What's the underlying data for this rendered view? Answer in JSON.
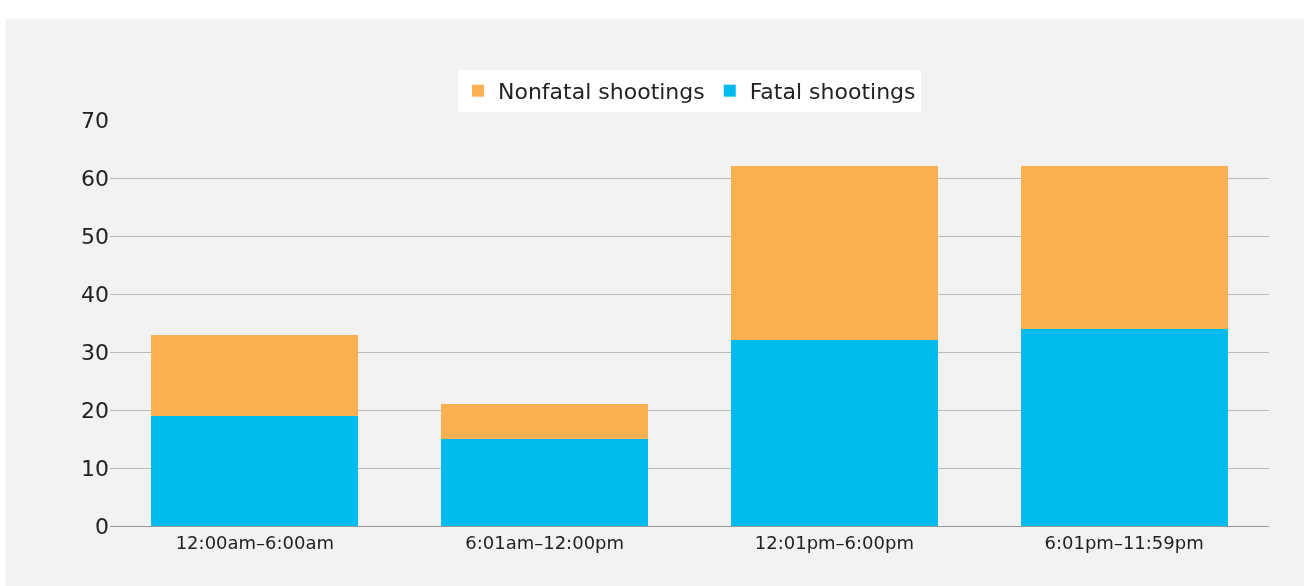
{
  "chart_data": {
    "type": "bar",
    "stacked": true,
    "categories": [
      "12:00am–6:00am",
      "6:01am–12:00pm",
      "12:01pm–6:00pm",
      "6:01pm–11:59pm"
    ],
    "series": [
      {
        "name": "Fatal shootings",
        "color": "#00bbee",
        "values": [
          19,
          15,
          32,
          34
        ]
      },
      {
        "name": "Nonfatal shootings",
        "color": "#f8b050",
        "values": [
          14,
          6,
          30,
          28
        ]
      }
    ],
    "ylim": [
      0,
      70
    ],
    "yticks": [
      0,
      10,
      20,
      30,
      40,
      50,
      60,
      70
    ],
    "grid": "y",
    "legend": "top"
  }
}
